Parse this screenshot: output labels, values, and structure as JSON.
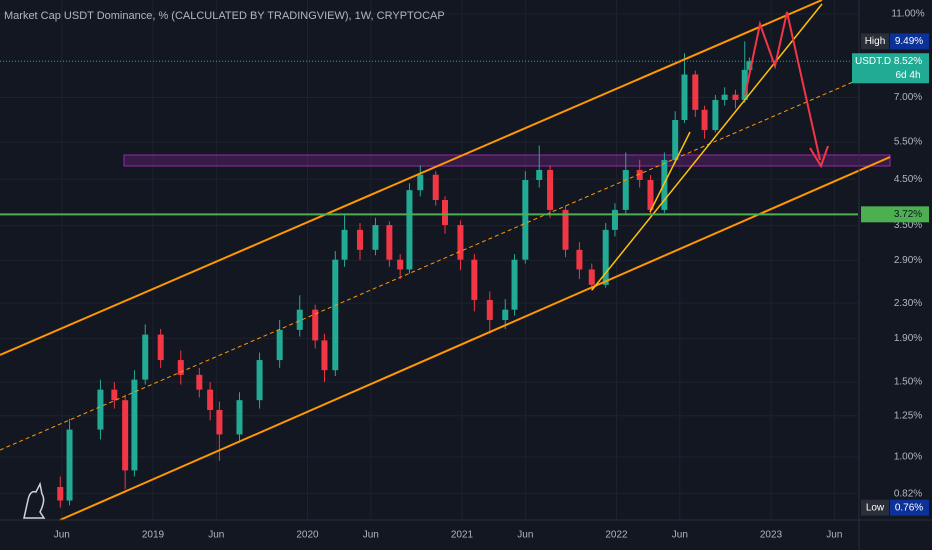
{
  "chart_data": {
    "type": "candlestick",
    "title": "Market Cap USDT Dominance, % (CALCULATED BY TRADINGVIEW), 1W, CRYPTOCAP",
    "x": [
      2018.4,
      2018.46,
      2018.66,
      2018.75,
      2018.82,
      2018.88,
      2018.95,
      2019.05,
      2019.18,
      2019.3,
      2019.37,
      2019.43,
      2019.56,
      2019.69,
      2019.82,
      2019.95,
      2020.05,
      2020.11,
      2020.18,
      2020.24,
      2020.34,
      2020.44,
      2020.53,
      2020.6,
      2020.66,
      2020.73,
      2020.83,
      2020.89,
      2020.99,
      2021.08,
      2021.18,
      2021.28,
      2021.34,
      2021.41,
      2021.5,
      2021.57,
      2021.67,
      2021.76,
      2021.84,
      2021.93,
      2021.99,
      2022.06,
      2022.15,
      2022.22,
      2022.31,
      2022.38,
      2022.44,
      2022.51,
      2022.57,
      2022.64,
      2022.7,
      2022.77,
      2022.83,
      2022.86
    ],
    "open": [
      0.85,
      0.79,
      1.16,
      1.44,
      1.36,
      0.93,
      1.52,
      1.94,
      1.69,
      1.56,
      1.44,
      1.29,
      1.13,
      1.36,
      1.69,
      1.99,
      2.22,
      1.88,
      1.6,
      2.91,
      3.42,
      3.07,
      3.51,
      2.91,
      2.76,
      4.24,
      4.61,
      4.02,
      3.51,
      2.91,
      2.34,
      2.1,
      2.22,
      2.91,
      4.48,
      4.73,
      3.81,
      3.07,
      2.76,
      2.54,
      3.42,
      3.81,
      4.73,
      4.48,
      3.81,
      4.99,
      6.2,
      7.93,
      6.55,
      5.87,
      6.91,
      7.11,
      6.91,
      8.13
    ],
    "high": [
      0.9,
      1.23,
      1.52,
      1.5,
      1.4,
      1.6,
      2.05,
      2.0,
      1.78,
      1.62,
      1.5,
      1.35,
      1.42,
      1.76,
      2.1,
      2.4,
      2.28,
      1.95,
      3.05,
      3.7,
      3.55,
      3.65,
      3.58,
      3.0,
      4.4,
      4.85,
      4.7,
      4.1,
      3.6,
      3.0,
      2.45,
      2.35,
      3.0,
      4.7,
      5.4,
      4.85,
      3.9,
      3.2,
      2.85,
      3.55,
      3.95,
      5.2,
      5.0,
      4.6,
      5.2,
      6.5,
      8.9,
      8.1,
      6.7,
      7.1,
      7.4,
      7.3,
      9.49,
      8.7
    ],
    "low": [
      0.76,
      0.77,
      1.1,
      1.3,
      0.84,
      0.9,
      1.48,
      1.62,
      1.48,
      1.38,
      1.22,
      0.98,
      1.08,
      1.3,
      1.62,
      1.92,
      1.8,
      1.5,
      1.55,
      2.8,
      2.9,
      2.98,
      2.8,
      2.62,
      2.7,
      4.1,
      3.9,
      3.35,
      2.75,
      2.2,
      1.95,
      2.0,
      2.15,
      2.85,
      4.3,
      3.65,
      2.95,
      2.62,
      2.46,
      2.5,
      3.3,
      3.7,
      4.3,
      3.7,
      3.75,
      4.9,
      6.1,
      6.3,
      5.6,
      5.8,
      6.7,
      6.6,
      6.8,
      8.0
    ],
    "close": [
      0.79,
      1.16,
      1.44,
      1.36,
      0.93,
      1.52,
      1.94,
      1.69,
      1.56,
      1.44,
      1.29,
      1.13,
      1.36,
      1.69,
      1.99,
      2.22,
      1.88,
      1.6,
      2.91,
      3.42,
      3.07,
      3.51,
      2.91,
      2.76,
      4.24,
      4.61,
      4.02,
      3.51,
      2.91,
      2.34,
      2.1,
      2.22,
      2.91,
      4.48,
      4.73,
      3.81,
      3.07,
      2.76,
      2.54,
      3.42,
      3.81,
      4.73,
      4.48,
      3.81,
      4.99,
      6.2,
      7.93,
      6.55,
      5.87,
      6.91,
      7.11,
      6.91,
      8.13,
      8.52
    ],
    "up_color": "#22ab94",
    "down_color": "#f23645",
    "xlim": [
      2018.01,
      2023.563
    ],
    "xticks": [
      {
        "value": 2018.41,
        "label": "Jun"
      },
      {
        "value": 2019.0,
        "label": "2019"
      },
      {
        "value": 2019.41,
        "label": "Jun"
      },
      {
        "value": 2020.0,
        "label": "2020"
      },
      {
        "value": 2020.41,
        "label": "Jun"
      },
      {
        "value": 2021.0,
        "label": "2021"
      },
      {
        "value": 2021.41,
        "label": "Jun"
      },
      {
        "value": 2022.0,
        "label": "2022"
      },
      {
        "value": 2022.41,
        "label": "Jun"
      },
      {
        "value": 2023.0,
        "label": "2023"
      },
      {
        "value": 2023.41,
        "label": "Jun"
      }
    ],
    "ylim": [
      0.711,
      11.87
    ],
    "log_scale": true,
    "yticks": [
      {
        "value": 11,
        "label": "11.00%"
      },
      {
        "value": 7,
        "label": "7.00%"
      },
      {
        "value": 5.5,
        "label": "5.50%"
      },
      {
        "value": 4.5,
        "label": "4.50%"
      },
      {
        "value": 3.5,
        "label": "3.50%"
      },
      {
        "value": 2.9,
        "label": "2.90%"
      },
      {
        "value": 2.3,
        "label": "2.30%"
      },
      {
        "value": 1.9,
        "label": "1.90%"
      },
      {
        "value": 1.5,
        "label": "1.50%"
      },
      {
        "value": 1.25,
        "label": "1.25%"
      },
      {
        "value": 1,
        "label": "1.00%"
      },
      {
        "value": 0.82,
        "label": "0.82%"
      }
    ],
    "price_line": {
      "name": "USDT.D",
      "value": 8.52,
      "label": "8.52%",
      "countdown": "6d 4h",
      "color": "#22ab94"
    },
    "high_marker": {
      "name": "High",
      "value": 9.49,
      "label": "9.49%"
    },
    "low_marker": {
      "name": "Low",
      "value": 0.76,
      "label": "0.76%"
    },
    "hline": {
      "value": 3.72,
      "label": "3.72%",
      "color": "#4caf50"
    }
  }
}
